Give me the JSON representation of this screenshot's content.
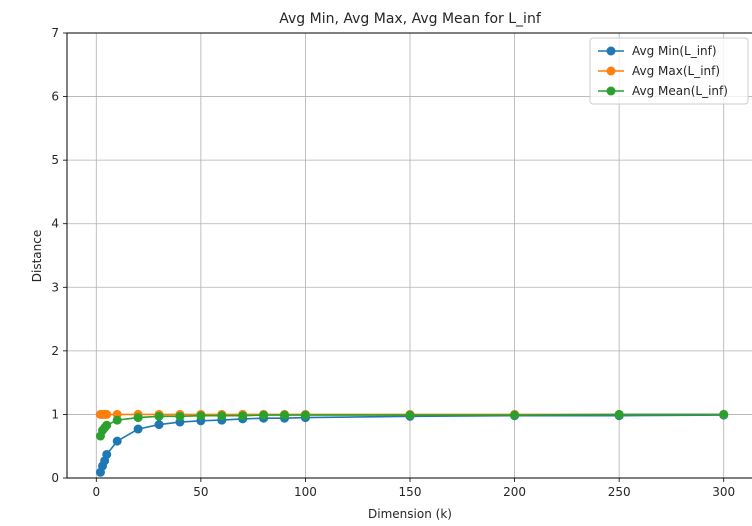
{
  "chart_data": {
    "type": "line",
    "title": "Avg Min, Avg Max, Avg Mean for L_inf",
    "xlabel": "Dimension (k)",
    "ylabel": "Distance",
    "xlim": [
      -14,
      314
    ],
    "ylim": [
      0,
      7
    ],
    "x_ticks": [
      0,
      50,
      100,
      150,
      200,
      250,
      300
    ],
    "y_ticks": [
      0,
      1,
      2,
      3,
      4,
      5,
      6,
      7
    ],
    "grid": true,
    "legend_position": "top-right",
    "x": [
      2,
      3,
      4,
      5,
      10,
      20,
      30,
      40,
      50,
      60,
      70,
      80,
      90,
      100,
      150,
      200,
      250,
      300
    ],
    "series": [
      {
        "name": "Avg Min(L_inf)",
        "color": "#1f77b4",
        "values": [
          0.09,
          0.19,
          0.27,
          0.37,
          0.58,
          0.77,
          0.84,
          0.88,
          0.9,
          0.91,
          0.93,
          0.94,
          0.94,
          0.95,
          0.97,
          0.98,
          0.98,
          0.99
        ]
      },
      {
        "name": "Avg Max(L_inf)",
        "color": "#ff7f0e",
        "values": [
          1.0,
          1.0,
          1.0,
          1.0,
          1.0,
          1.0,
          1.0,
          1.0,
          1.0,
          1.0,
          1.0,
          1.0,
          1.0,
          1.0,
          1.0,
          1.0,
          1.0,
          1.0
        ]
      },
      {
        "name": "Avg Mean(L_inf)",
        "color": "#2ca02c",
        "values": [
          0.66,
          0.75,
          0.79,
          0.83,
          0.91,
          0.95,
          0.97,
          0.97,
          0.98,
          0.98,
          0.98,
          0.99,
          0.99,
          0.99,
          0.99,
          0.99,
          1.0,
          1.0
        ]
      }
    ]
  }
}
